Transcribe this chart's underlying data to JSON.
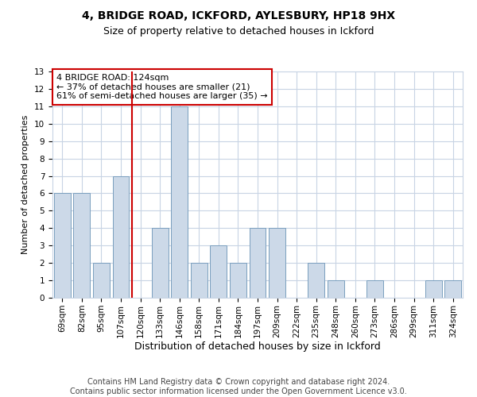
{
  "title1": "4, BRIDGE ROAD, ICKFORD, AYLESBURY, HP18 9HX",
  "title2": "Size of property relative to detached houses in Ickford",
  "xlabel": "Distribution of detached houses by size in Ickford",
  "ylabel": "Number of detached properties",
  "categories": [
    "69sqm",
    "82sqm",
    "95sqm",
    "107sqm",
    "120sqm",
    "133sqm",
    "146sqm",
    "158sqm",
    "171sqm",
    "184sqm",
    "197sqm",
    "209sqm",
    "222sqm",
    "235sqm",
    "248sqm",
    "260sqm",
    "273sqm",
    "286sqm",
    "299sqm",
    "311sqm",
    "324sqm"
  ],
  "values": [
    6,
    6,
    2,
    7,
    0,
    4,
    11,
    2,
    3,
    2,
    4,
    4,
    0,
    2,
    1,
    0,
    1,
    0,
    0,
    1,
    1
  ],
  "bar_color": "#ccd9e8",
  "bar_edge_color": "#7a9fbe",
  "ref_line_color": "#cc0000",
  "annotation_box_text": "4 BRIDGE ROAD: 124sqm\n← 37% of detached houses are smaller (21)\n61% of semi-detached houses are larger (35) →",
  "annotation_box_color": "#cc0000",
  "annotation_box_fill": "#ffffff",
  "ylim": [
    0,
    13
  ],
  "yticks": [
    0,
    1,
    2,
    3,
    4,
    5,
    6,
    7,
    8,
    9,
    10,
    11,
    12,
    13
  ],
  "grid_color": "#c8d4e4",
  "background_color": "#ffffff",
  "footer1": "Contains HM Land Registry data © Crown copyright and database right 2024.",
  "footer2": "Contains public sector information licensed under the Open Government Licence v3.0.",
  "title1_fontsize": 10,
  "title2_fontsize": 9,
  "xlabel_fontsize": 9,
  "ylabel_fontsize": 8,
  "tick_fontsize": 7.5,
  "annotation_fontsize": 8,
  "footer_fontsize": 7
}
